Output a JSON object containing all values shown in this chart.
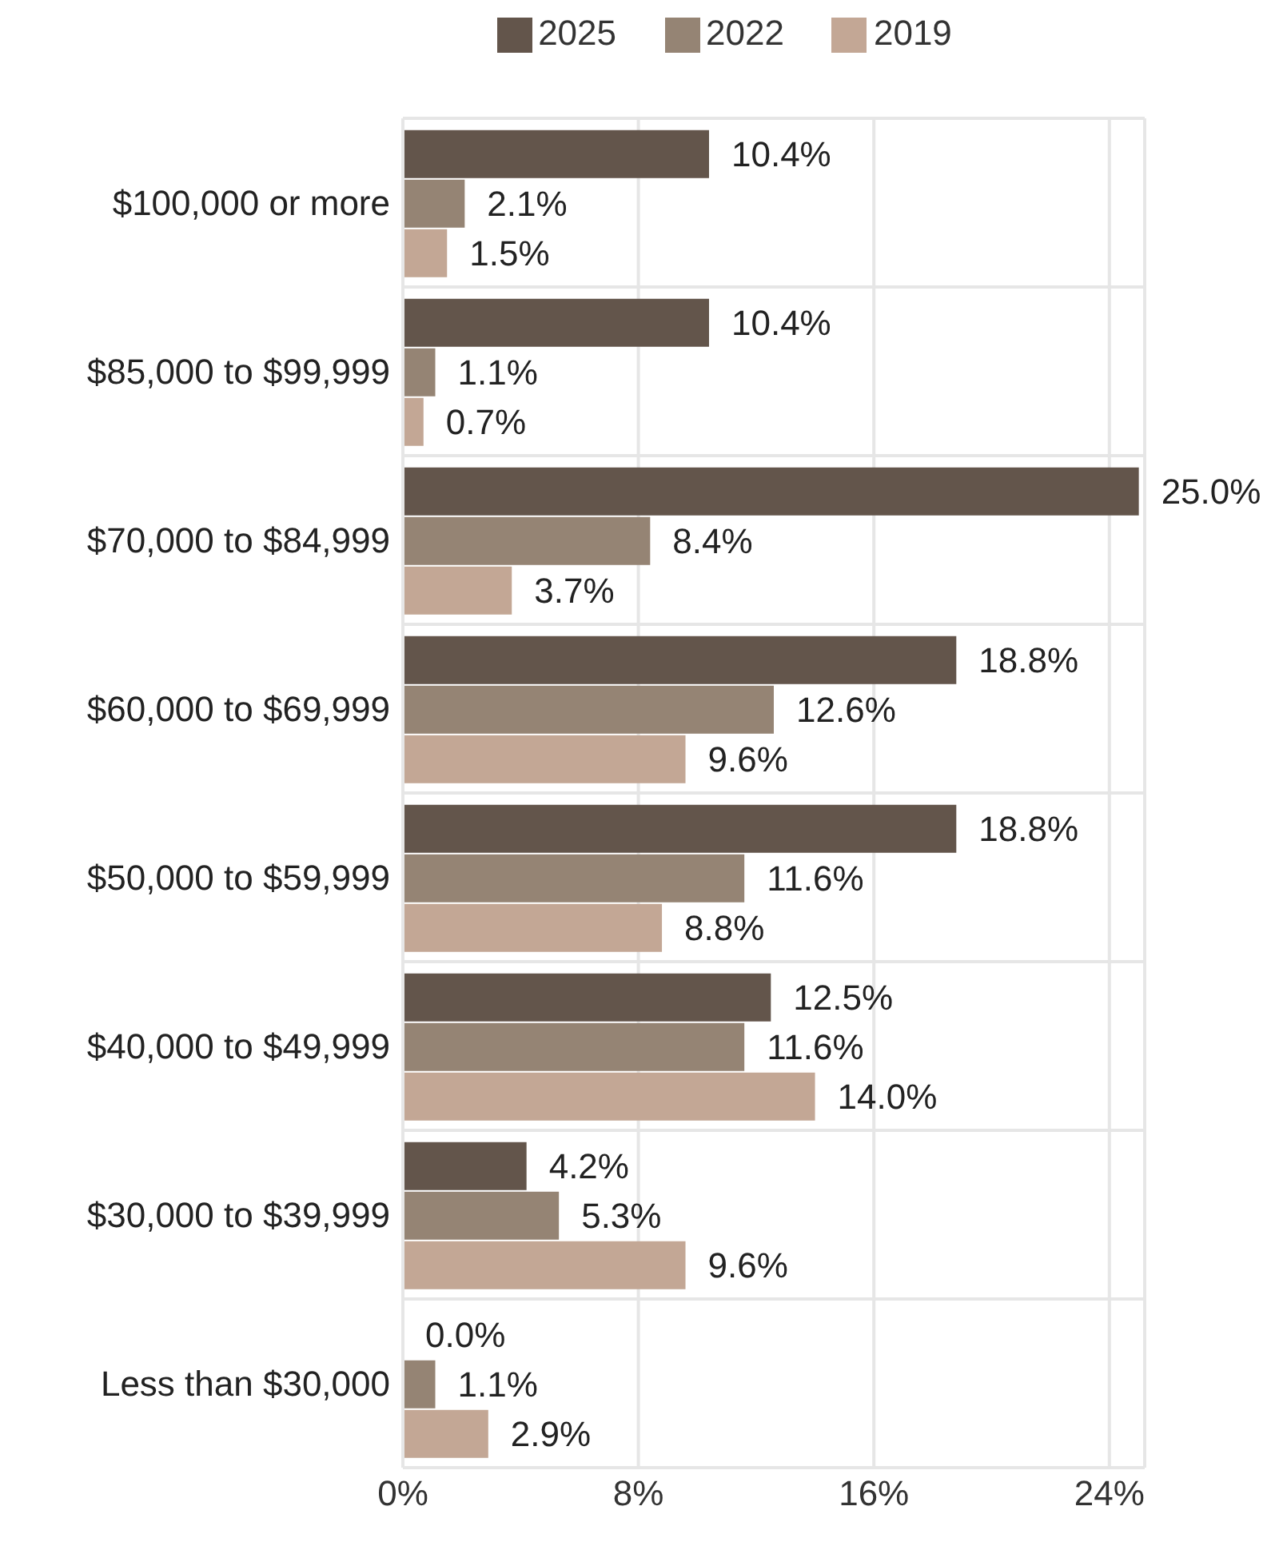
{
  "chart_data": {
    "type": "bar",
    "orientation": "horizontal",
    "categories": [
      "$100,000 or more",
      "$85,000 to $99,999",
      "$70,000 to $84,999",
      "$60,000 to $69,999",
      "$50,000 to $59,999",
      "$40,000 to $49,999",
      "$30,000 to $39,999",
      "Less than $30,000"
    ],
    "series": [
      {
        "name": "2025",
        "color": "#63554b",
        "values": [
          10.4,
          10.4,
          25.0,
          18.8,
          18.8,
          12.5,
          4.2,
          0.0
        ],
        "value_labels": [
          "10.4%",
          "10.4%",
          "25.0%",
          "18.8%",
          "18.8%",
          "12.5%",
          "4.2%",
          "0.0%"
        ]
      },
      {
        "name": "2022",
        "color": "#958474",
        "values": [
          2.1,
          1.1,
          8.4,
          12.6,
          11.6,
          11.6,
          5.3,
          1.1
        ],
        "value_labels": [
          "2.1%",
          "1.1%",
          "8.4%",
          "12.6%",
          "11.6%",
          "11.6%",
          "5.3%",
          "1.1%"
        ]
      },
      {
        "name": "2019",
        "color": "#c3a795",
        "values": [
          1.5,
          0.7,
          3.7,
          9.6,
          8.8,
          14.0,
          9.6,
          2.9
        ],
        "value_labels": [
          "1.5%",
          "0.7%",
          "3.7%",
          "9.6%",
          "8.8%",
          "14.0%",
          "9.6%",
          "2.9%"
        ]
      }
    ],
    "xlim": [
      0,
      25.2
    ],
    "xticks": [
      {
        "value": 0,
        "label": "0%"
      },
      {
        "value": 8,
        "label": "8%"
      },
      {
        "value": 16,
        "label": "16%"
      },
      {
        "value": 24,
        "label": "24%"
      }
    ],
    "grid": true,
    "legend": "top"
  }
}
